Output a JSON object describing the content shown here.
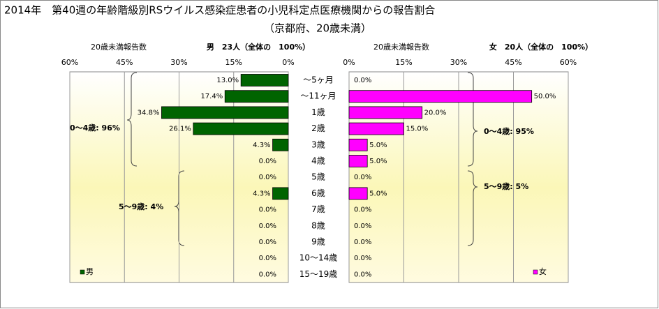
{
  "chart_data": {
    "type": "bar",
    "title": "2014年　第40週の年齢階級別RSウイルス感染症患者の小児科定点医療機関からの報告割合",
    "subtitle": "（京都府、20歳未満）",
    "categories": [
      "～5ヶ月",
      "～11ヶ月",
      "1歳",
      "2歳",
      "3歳",
      "4歳",
      "5歳",
      "6歳",
      "7歳",
      "8歳",
      "9歳",
      "10～14歳",
      "15～19歳"
    ],
    "xlim": [
      0,
      60
    ],
    "xticks": [
      {
        "value": 0,
        "label": "0%"
      },
      {
        "value": 15,
        "label": "15%"
      },
      {
        "value": 30,
        "label": "30%"
      },
      {
        "value": 45,
        "label": "45%"
      },
      {
        "value": 60,
        "label": "60%"
      }
    ],
    "grid": true,
    "series": [
      {
        "name": "男",
        "color": "#006400",
        "axis_label": "20歳未満報告数",
        "header": "男　23人（全体の　100%）",
        "values": [
          13.0,
          17.4,
          34.8,
          26.1,
          4.3,
          0,
          0,
          4.3,
          0,
          0,
          0,
          0,
          0
        ],
        "value_labels": [
          "13.0%",
          "17.4%",
          "34.8%",
          "26.1%",
          "4.3%",
          "0.0%",
          "0.0%",
          "4.3%",
          "0.0%",
          "0.0%",
          "0.0%",
          "0.0%",
          "0.0%"
        ],
        "annotations": [
          "0～4歳: 96%",
          "5～9歳: 4%"
        ]
      },
      {
        "name": "女",
        "color": "#ff00ff",
        "axis_label": "20歳未満報告数",
        "header": "女　20人（全体の　100%）",
        "values": [
          0,
          50.0,
          20.0,
          15.0,
          5.0,
          5.0,
          0,
          5.0,
          0,
          0,
          0,
          0,
          0
        ],
        "value_labels": [
          "0.0%",
          "50.0%",
          "20.0%",
          "15.0%",
          "5.0%",
          "5.0%",
          "0.0%",
          "5.0%",
          "0.0%",
          "0.0%",
          "0.0%",
          "0.0%",
          "0.0%"
        ],
        "annotations": [
          "0～4歳: 95%",
          "5～9歳: 5%"
        ]
      }
    ]
  }
}
